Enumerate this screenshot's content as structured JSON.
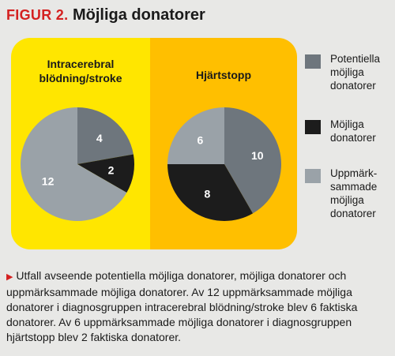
{
  "header": {
    "figure_label": "FIGUR 2.",
    "title": "Möjliga donatorer"
  },
  "colors": {
    "background": "#e8e8e6",
    "panel_left": "#ffe600",
    "panel_right": "#ffbf00",
    "potentiella": "#6e767d",
    "mojliga": "#1c1c1c",
    "uppmarksammade": "#9aa2a8"
  },
  "chart_data": [
    {
      "type": "pie",
      "title": "Intracerebral blödning/stroke",
      "slices": [
        {
          "name": "Potentiella möjliga donatorer",
          "value": 4,
          "color": "#6e767d",
          "label": "4"
        },
        {
          "name": "Möjliga donatorer",
          "value": 2,
          "color": "#1c1c1c",
          "label": "2"
        },
        {
          "name": "Uppmärksammade möjliga donatorer",
          "value": 12,
          "color": "#9aa2a8",
          "label": "12"
        }
      ]
    },
    {
      "type": "pie",
      "title": "Hjärtstopp",
      "slices": [
        {
          "name": "Potentiella möjliga donatorer",
          "value": 10,
          "color": "#6e767d",
          "label": "10"
        },
        {
          "name": "Möjliga donatorer",
          "value": 8,
          "color": "#1c1c1c",
          "label": "8"
        },
        {
          "name": "Uppmärksammade möjliga donatorer",
          "value": 6,
          "color": "#9aa2a8",
          "label": "6"
        }
      ]
    }
  ],
  "group_labels": {
    "left_line1": "Intracerebral",
    "left_line2": "blödning/stroke",
    "right": "Hjärtstopp"
  },
  "legend": [
    {
      "lines": [
        "Potentiella",
        "möjliga",
        "donatorer"
      ],
      "color": "#6e767d"
    },
    {
      "lines": [
        "Möjliga",
        "donatorer"
      ],
      "color": "#1c1c1c"
    },
    {
      "lines": [
        "Uppmärk-",
        "sammade",
        "möjliga",
        "donatorer"
      ],
      "color": "#9aa2a8"
    }
  ],
  "caption": "Utfall avseende potentiella möjliga donatorer, möjliga donatorer och uppmärksammade möjliga donatorer. Av 12 uppmärksammade möjliga donatorer i diagnosgruppen intracerebral blödning/stroke blev 6 faktiska donatorer. Av 6 uppmärksammade möjliga donatorer i diagnosgruppen hjärtstopp blev 2 faktiska donatorer."
}
